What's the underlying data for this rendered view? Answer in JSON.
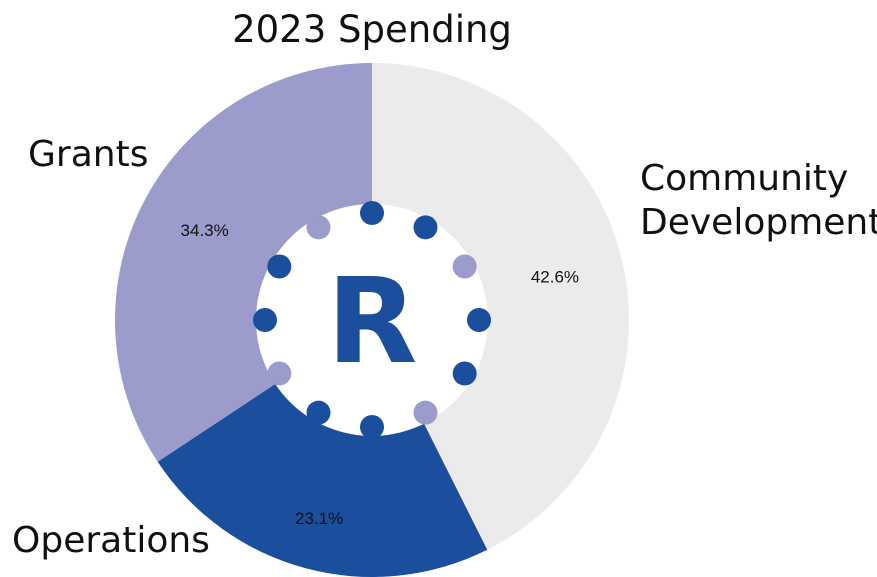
{
  "chart_data": {
    "type": "pie",
    "title": "2023 Spending",
    "labels": [
      "Community Development",
      "Operations",
      "Grants"
    ],
    "label_lines": [
      [
        "Community",
        "Development"
      ],
      [
        "Operations"
      ],
      [
        "Grants"
      ]
    ],
    "values": [
      42.6,
      23.1,
      34.3
    ],
    "value_labels": [
      "42.6%",
      "23.1%",
      "34.3%"
    ],
    "colors": [
      "#ebebeb",
      "#1b4f9e",
      "#9b9bcc"
    ],
    "donut": true,
    "start_angle_deg": 0,
    "direction": "clockwise"
  },
  "logo": {
    "letter": "R",
    "letter_color": "#1b4f9e",
    "dot_colors": [
      "#1b4f9e",
      "#9b9bcc"
    ]
  }
}
